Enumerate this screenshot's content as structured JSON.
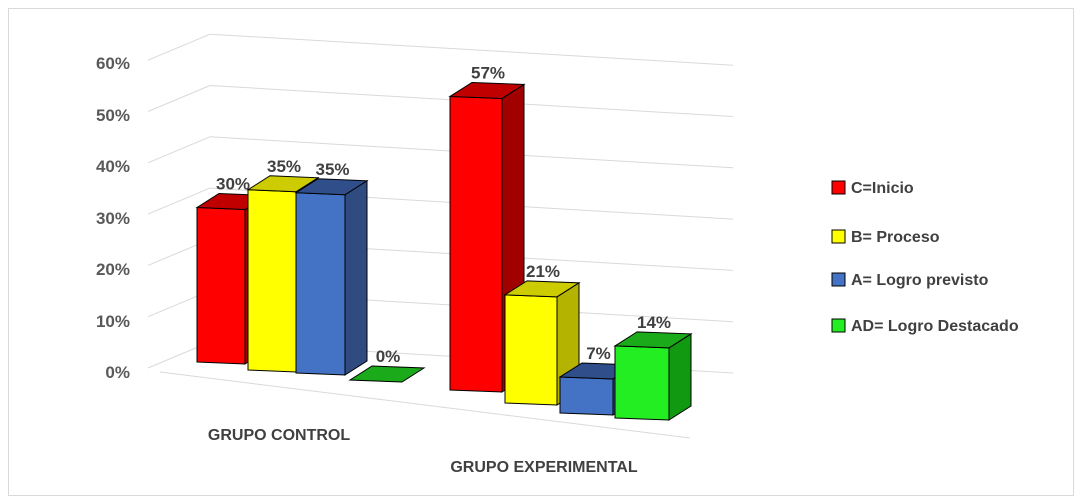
{
  "chart_data": {
    "type": "bar",
    "title": "",
    "xlabel": "",
    "ylabel": "",
    "ylim": [
      0,
      0.6
    ],
    "yticks": [
      "0%",
      "10%",
      "20%",
      "30%",
      "40%",
      "50%",
      "60%"
    ],
    "categories": [
      "GRUPO CONTROL",
      "GRUPO EXPERIMENTAL"
    ],
    "series": [
      {
        "name": "C=Inicio",
        "values": [
          0.3,
          0.57
        ],
        "labels": [
          "30%",
          "57%"
        ],
        "color": "#FF0000",
        "side": "#A00000",
        "top": "#C00000"
      },
      {
        "name": "B= Proceso",
        "values": [
          0.35,
          0.21
        ],
        "labels": [
          "35%",
          "21%"
        ],
        "color": "#FFFF00",
        "side": "#B3B300",
        "top": "#CCCC00"
      },
      {
        "name": "A= Logro previsto",
        "values": [
          0.35,
          0.07
        ],
        "labels": [
          "35%",
          "7%"
        ],
        "color": "#4472C4",
        "side": "#2F4B7F",
        "top": "#2F4E8A"
      },
      {
        "name": "AD= Logro Destacado",
        "values": [
          0.0,
          0.14
        ],
        "labels": [
          "0%",
          "14%"
        ],
        "color": "#22EE22",
        "side": "#119911",
        "top": "#1AAA1A"
      }
    ],
    "grid": true,
    "legend_position": "right",
    "style": "3d-clustered-column"
  }
}
